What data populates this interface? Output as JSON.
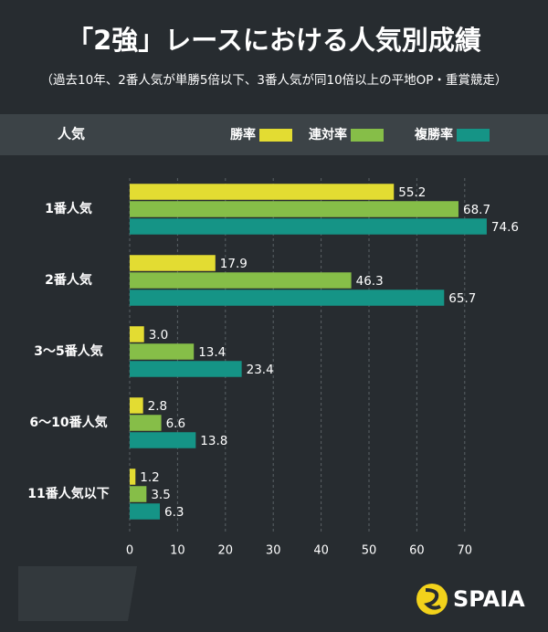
{
  "chart_data": {
    "type": "hbar",
    "title": "「2強」レースにおける人気別成績",
    "subtitle": "（過去10年、2番人気が単勝5倍以下、3番人気が同10倍以上の平地OP・重賞競走）",
    "y_label": "人気",
    "categories": [
      "1番人気",
      "2番人気",
      "3～5番人気",
      "6～10番人気",
      "11番人気以下"
    ],
    "series": [
      {
        "name": "勝率",
        "color": "#e3dc32",
        "values": [
          55.2,
          17.9,
          3.0,
          2.8,
          1.2
        ],
        "value_labels": [
          "55.2",
          "17.9",
          "3.0",
          "2.8",
          "1.2"
        ]
      },
      {
        "name": "連対率",
        "color": "#86be48",
        "values": [
          68.7,
          46.3,
          13.4,
          6.6,
          3.5
        ]
      },
      {
        "name": "複勝率",
        "color": "#159486",
        "values": [
          74.6,
          65.7,
          23.4,
          13.8,
          6.3
        ]
      }
    ],
    "xlim": [
      0,
      75
    ],
    "xticks": [
      0,
      10,
      20,
      30,
      40,
      50,
      60,
      70
    ],
    "grid": true
  },
  "logo": "SPAIA"
}
